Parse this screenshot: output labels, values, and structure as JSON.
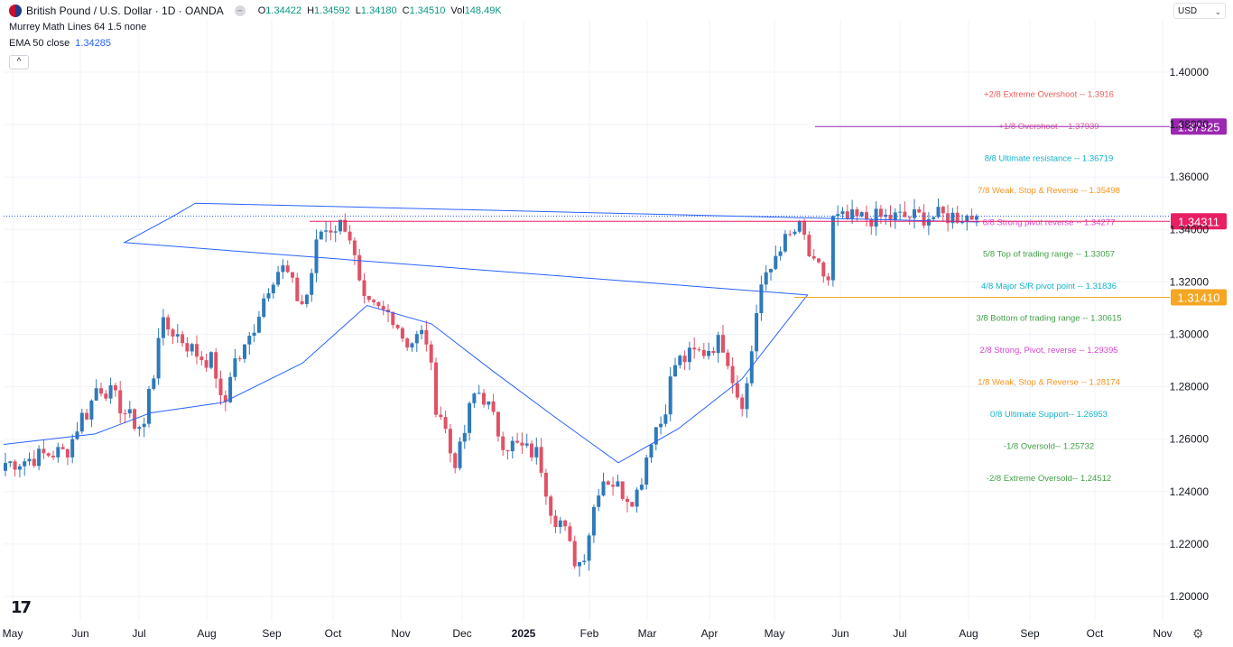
{
  "header": {
    "title": "British Pound / U.S. Dollar · 1D · OANDA",
    "ohlc": [
      {
        "key": "O",
        "value": "1.34422"
      },
      {
        "key": "H",
        "value": "1.34592"
      },
      {
        "key": "L",
        "value": "1.34180"
      },
      {
        "key": "C",
        "value": "1.34510"
      },
      {
        "key": "Vol",
        "value": "148.49K"
      }
    ],
    "indicator1": "Murrey Math Lines 64 1.5 none",
    "indicator2_label": "EMA 50 close",
    "indicator2_value": "1.34285",
    "currency": "USD"
  },
  "colors": {
    "up": "#2e7ab9",
    "down": "#e05266",
    "ema": "#2962ff",
    "grid": "#f0f3fa"
  },
  "chart_data": {
    "type": "candlestick",
    "instrument": "British Pound / U.S. Dollar",
    "ylim": [
      1.19,
      1.415
    ],
    "y_ticks": [
      "1.40000",
      "1.38000",
      "1.36000",
      "1.34000",
      "1.32000",
      "1.30000",
      "1.28000",
      "1.26000",
      "1.24000",
      "1.22000",
      "1.20000"
    ],
    "x_ticks": [
      "May",
      "Jun",
      "Jul",
      "Aug",
      "Sep",
      "Oct",
      "Nov",
      "Dec",
      "2025",
      "Feb",
      "Mar",
      "Apr",
      "May",
      "Jun",
      "Jul",
      "Aug",
      "Sep",
      "Oct",
      "Nov"
    ],
    "price_path": [
      [
        "May",
        1.251
      ],
      [
        "May",
        1.255
      ],
      [
        "Jun",
        1.27
      ],
      [
        "Jun",
        1.28
      ],
      [
        "Jul",
        1.265
      ],
      [
        "Jul",
        1.282
      ],
      [
        "Jul",
        1.303
      ],
      [
        "Aug",
        1.29
      ],
      [
        "Aug",
        1.272
      ],
      [
        "Aug",
        1.29
      ],
      [
        "Sep",
        1.325
      ],
      [
        "Sep",
        1.312
      ],
      [
        "Sep",
        1.34
      ],
      [
        "Oct",
        1.342
      ],
      [
        "Oct",
        1.31
      ],
      [
        "Oct",
        1.308
      ],
      [
        "Nov",
        1.297
      ],
      [
        "Nov",
        1.3
      ],
      [
        "Nov",
        1.27
      ],
      [
        "Nov",
        1.252
      ],
      [
        "Dec",
        1.278
      ],
      [
        "Dec",
        1.258
      ],
      [
        "2025",
        1.255
      ],
      [
        "2025",
        1.23
      ],
      [
        "2025",
        1.213
      ],
      [
        "Feb",
        1.245
      ],
      [
        "Feb",
        1.238
      ],
      [
        "Mar",
        1.265
      ],
      [
        "Mar",
        1.29
      ],
      [
        "Mar",
        1.293
      ],
      [
        "Apr",
        1.297
      ],
      [
        "Apr",
        1.275
      ],
      [
        "Apr",
        1.32
      ],
      [
        "May",
        1.335
      ],
      [
        "May",
        1.34
      ],
      [
        "May",
        1.325
      ],
      [
        "May",
        1.32
      ],
      [
        "Jun",
        1.34
      ],
      [
        "Jun",
        1.355
      ],
      [
        "Jun",
        1.345
      ],
      [
        "Jul",
        1.375
      ],
      [
        "Jul",
        1.36
      ],
      [
        "Jul",
        1.345
      ],
      [
        "Jul",
        1.356
      ],
      [
        "Jul",
        1.345
      ],
      [
        "Aug",
        1.32
      ],
      [
        "Aug",
        1.33
      ],
      [
        "Aug",
        1.3451
      ]
    ],
    "ema50": [
      [
        "May",
        1.258
      ],
      [
        "Jun",
        1.262
      ],
      [
        "Jul",
        1.27
      ],
      [
        "Aug",
        1.274
      ],
      [
        "Sep",
        1.289
      ],
      [
        "Oct",
        1.311
      ],
      [
        "Nov",
        1.304
      ],
      [
        "Dec",
        1.286
      ],
      [
        "2025",
        1.268
      ],
      [
        "Feb",
        1.251
      ],
      [
        "Mar",
        1.264
      ],
      [
        "Apr",
        1.283
      ],
      [
        "May",
        1.315
      ],
      [
        "Jun",
        1.335
      ],
      [
        "Jul",
        1.345
      ],
      [
        "Jul",
        1.35
      ],
      [
        "Aug",
        1.34285
      ]
    ],
    "murrey_levels": [
      {
        "label": "+2/8 Extreme Overshoot --  1.3916",
        "value": 1.3916,
        "color": "#f05a5a"
      },
      {
        "label": "+1/8 Overshoot --  1.37939",
        "value": 1.37939,
        "color": "#e0609a"
      },
      {
        "label": "8/8 Ultimate resistance --  1.36719",
        "value": 1.36719,
        "color": "#12b4c8"
      },
      {
        "label": "7/8 Weak, Stop & Reverse --  1.35498",
        "value": 1.35498,
        "color": "#f7931e"
      },
      {
        "label": "6/8 Strong pivot reverse --  1.34277",
        "value": 1.34277,
        "color": "#d946d0"
      },
      {
        "label": "5/8 Top of trading range --  1.33057",
        "value": 1.33057,
        "color": "#43a047"
      },
      {
        "label": "4/8 Major S/R pivot point --  1.31836",
        "value": 1.31836,
        "color": "#12b4c8"
      },
      {
        "label": "3/8 Bottom of trading range --  1.30615",
        "value": 1.30615,
        "color": "#43a047"
      },
      {
        "label": "2/8 Strong, Pivot, reverse --  1.29395",
        "value": 1.29395,
        "color": "#d946d0"
      },
      {
        "label": "1/8 Weak, Stop & Reverse --  1.28174",
        "value": 1.28174,
        "color": "#f7931e"
      },
      {
        "label": "0/8 Ultimate Support--  1.26953",
        "value": 1.26953,
        "color": "#12b4c8"
      },
      {
        "label": "-1/8 Oversold--  1.25732",
        "value": 1.25732,
        "color": "#43a047"
      },
      {
        "label": "-2/8 Extreme Oversold--  1.24512",
        "value": 1.24512,
        "color": "#43a047"
      }
    ],
    "horizontal_lines": [
      {
        "label": "1.37925",
        "value": 1.37925,
        "color": "#9c27b0",
        "from": "May"
      },
      {
        "label": "1.34311",
        "value": 1.34311,
        "color": "#e91e63",
        "from": "Sep"
      },
      {
        "label": "1.31410",
        "value": 1.3141,
        "color": "#f5a623",
        "from": "May"
      }
    ],
    "last_price_value": 1.3451
  }
}
